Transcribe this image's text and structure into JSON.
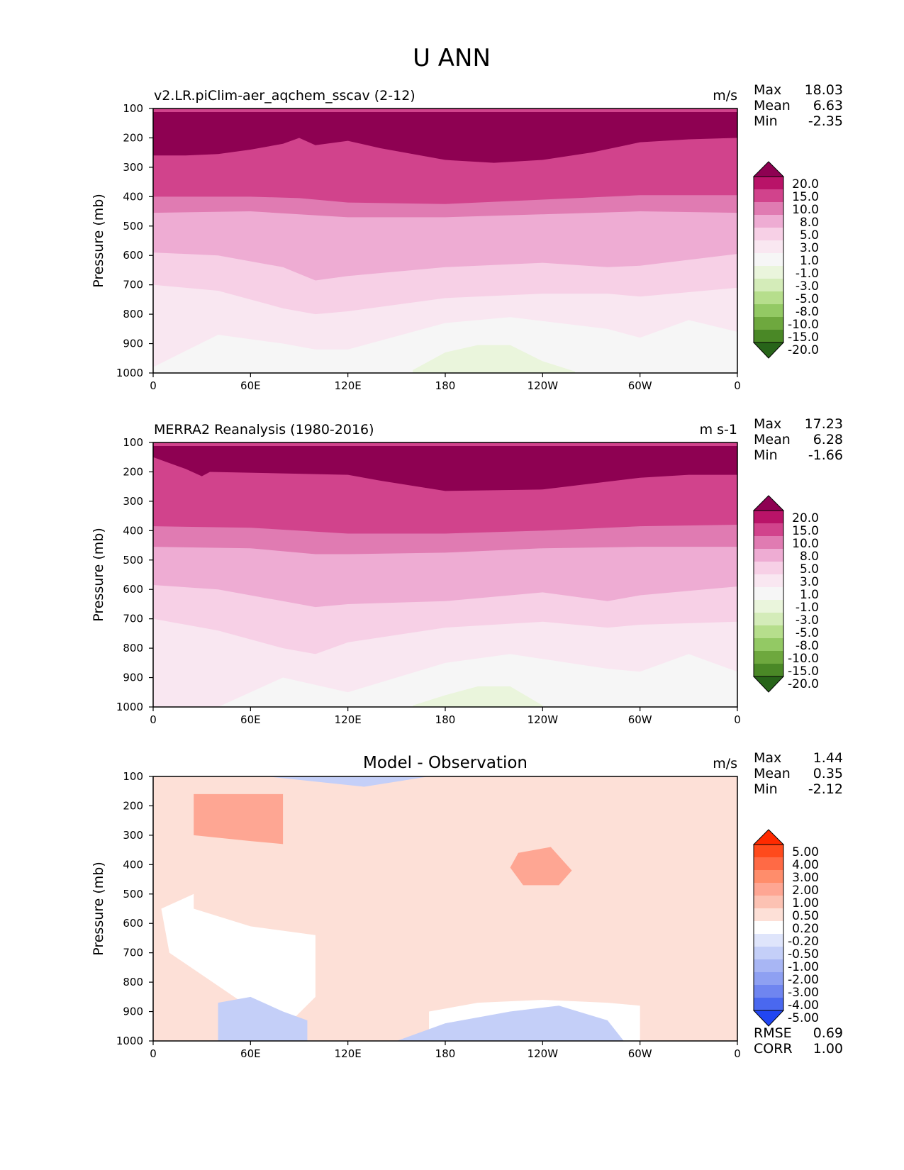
{
  "figure": {
    "title": "U ANN"
  },
  "panels": [
    {
      "title_left": "v2.LR.piClim-aer_aqchem_sscav (2-12)",
      "title_center": "",
      "units": "m/s",
      "stats": [
        {
          "label": "Max",
          "value": "18.03"
        },
        {
          "label": "Mean",
          "value": "6.63"
        },
        {
          "label": "Min",
          "value": "-2.35"
        }
      ],
      "ylabel": "Pressure (mb)",
      "yticks": [
        "100",
        "200",
        "300",
        "400",
        "500",
        "600",
        "700",
        "800",
        "900",
        "1000"
      ],
      "xticks": [
        "0",
        "60E",
        "120E",
        "180",
        "120W",
        "60W",
        "0"
      ],
      "colorbar": {
        "labels": [
          "20.0",
          "15.0",
          "10.0",
          "8.0",
          "5.0",
          "3.0",
          "1.0",
          "-1.0",
          "-3.0",
          "-5.0",
          "-8.0",
          "-10.0",
          "-15.0",
          "-20.0"
        ],
        "colors": [
          "#8e0152",
          "#b91368",
          "#d1438c",
          "#e07bb2",
          "#eeacd3",
          "#f7d0e6",
          "#f9e7f1",
          "#f6f6f6",
          "#eaf5dc",
          "#d4ecb9",
          "#b6de8c",
          "#93c964",
          "#6ea83e",
          "#4a8826",
          "#276419"
        ]
      },
      "extra_stats": []
    },
    {
      "title_left": "MERRA2 Reanalysis (1980-2016)",
      "title_center": "",
      "units": "m s-1",
      "stats": [
        {
          "label": "Max",
          "value": "17.23"
        },
        {
          "label": "Mean",
          "value": "6.28"
        },
        {
          "label": "Min",
          "value": "-1.66"
        }
      ],
      "ylabel": "Pressure (mb)",
      "yticks": [
        "100",
        "200",
        "300",
        "400",
        "500",
        "600",
        "700",
        "800",
        "900",
        "1000"
      ],
      "xticks": [
        "0",
        "60E",
        "120E",
        "180",
        "120W",
        "60W",
        "0"
      ],
      "colorbar": {
        "labels": [
          "20.0",
          "15.0",
          "10.0",
          "8.0",
          "5.0",
          "3.0",
          "1.0",
          "-1.0",
          "-3.0",
          "-5.0",
          "-8.0",
          "-10.0",
          "-15.0",
          "-20.0"
        ],
        "colors": [
          "#8e0152",
          "#b91368",
          "#d1438c",
          "#e07bb2",
          "#eeacd3",
          "#f7d0e6",
          "#f9e7f1",
          "#f6f6f6",
          "#eaf5dc",
          "#d4ecb9",
          "#b6de8c",
          "#93c964",
          "#6ea83e",
          "#4a8826",
          "#276419"
        ]
      },
      "extra_stats": []
    },
    {
      "title_left": "",
      "title_center": "Model - Observation",
      "units": "m/s",
      "stats": [
        {
          "label": "Max",
          "value": "1.44"
        },
        {
          "label": "Mean",
          "value": "0.35"
        },
        {
          "label": "Min",
          "value": "-2.12"
        }
      ],
      "ylabel": "Pressure (mb)",
      "yticks": [
        "100",
        "200",
        "300",
        "400",
        "500",
        "600",
        "700",
        "800",
        "900",
        "1000"
      ],
      "xticks": [
        "0",
        "60E",
        "120E",
        "180",
        "120W",
        "60W",
        "0"
      ],
      "colorbar": {
        "labels": [
          "5.00",
          "4.00",
          "3.00",
          "2.00",
          "1.00",
          "0.50",
          "0.20",
          "-0.20",
          "-0.50",
          "-1.00",
          "-2.00",
          "-3.00",
          "-4.00",
          "-5.00"
        ],
        "colors": [
          "#ff2a00",
          "#ff4a1c",
          "#ff6a45",
          "#ff8d6b",
          "#fea693",
          "#fcc2b3",
          "#fde0d7",
          "#ffffff",
          "#dfe5fb",
          "#c4cff8",
          "#a8b6f4",
          "#8ea0f2",
          "#6f85f0",
          "#4a68ef",
          "#2146f2"
        ]
      },
      "extra_stats": [
        {
          "label": "RMSE",
          "value": "0.69"
        },
        {
          "label": "CORR",
          "value": "1.00"
        }
      ]
    }
  ],
  "chart_data": [
    {
      "type": "heatmap",
      "title": "v2.LR.piClim-aer_aqchem_sscav (2-12)",
      "units": "m/s",
      "xlabel": "",
      "ylabel": "Pressure (mb)",
      "x_ticks": [
        "0",
        "60E",
        "120E",
        "180",
        "120W",
        "60W",
        "0"
      ],
      "ylim": [
        1000,
        100
      ],
      "levels": [
        -20,
        -15,
        -10,
        -8,
        -5,
        -3,
        -1,
        1,
        3,
        5,
        8,
        10,
        15,
        20
      ],
      "contours": [
        {
          "level": 15,
          "lon": [
            0,
            20,
            40,
            60,
            80,
            90,
            100,
            120,
            140,
            180,
            210,
            240,
            270,
            300,
            330,
            360
          ],
          "p": [
            260,
            260,
            255,
            240,
            220,
            200,
            225,
            210,
            235,
            275,
            285,
            275,
            250,
            215,
            205,
            200
          ]
        },
        {
          "level": 10,
          "lon": [
            0,
            60,
            90,
            120,
            180,
            240,
            300,
            360
          ],
          "p": [
            400,
            400,
            405,
            420,
            425,
            410,
            395,
            395
          ]
        },
        {
          "level": 8,
          "lon": [
            0,
            60,
            90,
            120,
            180,
            240,
            300,
            360
          ],
          "p": [
            455,
            450,
            460,
            470,
            470,
            460,
            450,
            455
          ]
        },
        {
          "level": 5,
          "lon": [
            0,
            40,
            80,
            100,
            120,
            180,
            240,
            280,
            300,
            360
          ],
          "p": [
            590,
            600,
            640,
            685,
            670,
            640,
            625,
            640,
            635,
            595
          ]
        },
        {
          "level": 3,
          "lon": [
            0,
            40,
            80,
            100,
            120,
            180,
            240,
            280,
            300,
            360
          ],
          "p": [
            700,
            720,
            780,
            800,
            790,
            745,
            730,
            730,
            740,
            710
          ]
        },
        {
          "level": 1,
          "lon": [
            0,
            40,
            80,
            100,
            120,
            180,
            220,
            280,
            300,
            330,
            360
          ],
          "p": [
            980,
            870,
            900,
            920,
            920,
            830,
            810,
            850,
            880,
            820,
            860
          ]
        },
        {
          "level": -1,
          "lon": [
            160,
            180,
            200,
            220,
            240,
            260
          ],
          "p": [
            990,
            930,
            905,
            905,
            960,
            995
          ]
        }
      ]
    },
    {
      "type": "heatmap",
      "title": "MERRA2 Reanalysis (1980-2016)",
      "units": "m s-1",
      "xlabel": "",
      "ylabel": "Pressure (mb)",
      "x_ticks": [
        "0",
        "60E",
        "120E",
        "180",
        "120W",
        "60W",
        "0"
      ],
      "ylim": [
        1000,
        100
      ],
      "levels": [
        -20,
        -15,
        -10,
        -8,
        -5,
        -3,
        -1,
        1,
        3,
        5,
        8,
        10,
        15,
        20
      ],
      "contours": [
        {
          "level": 15,
          "lon": [
            0,
            20,
            30,
            35,
            120,
            140,
            180,
            240,
            270,
            300,
            330,
            360
          ],
          "p": [
            150,
            190,
            215,
            200,
            210,
            230,
            265,
            260,
            240,
            220,
            210,
            210
          ]
        },
        {
          "level": 10,
          "lon": [
            0,
            60,
            120,
            180,
            240,
            300,
            360
          ],
          "p": [
            385,
            390,
            410,
            410,
            400,
            385,
            380
          ]
        },
        {
          "level": 8,
          "lon": [
            0,
            60,
            100,
            120,
            180,
            240,
            300,
            360
          ],
          "p": [
            455,
            460,
            480,
            480,
            475,
            460,
            455,
            455
          ]
        },
        {
          "level": 5,
          "lon": [
            0,
            40,
            80,
            100,
            120,
            180,
            240,
            280,
            300,
            360
          ],
          "p": [
            585,
            600,
            640,
            660,
            650,
            640,
            610,
            640,
            620,
            590
          ]
        },
        {
          "level": 3,
          "lon": [
            0,
            40,
            80,
            100,
            120,
            180,
            240,
            280,
            300,
            360
          ],
          "p": [
            700,
            740,
            800,
            820,
            780,
            730,
            710,
            730,
            720,
            710
          ]
        },
        {
          "level": 1,
          "lon": [
            0,
            40,
            80,
            120,
            180,
            220,
            280,
            300,
            330,
            360
          ],
          "p": [
            1000,
            1000,
            900,
            950,
            850,
            820,
            870,
            880,
            820,
            880
          ]
        },
        {
          "level": -1,
          "lon": [
            160,
            180,
            200,
            220,
            240
          ],
          "p": [
            995,
            960,
            930,
            930,
            995
          ]
        }
      ]
    },
    {
      "type": "heatmap",
      "title": "Model - Observation",
      "units": "m/s",
      "xlabel": "",
      "ylabel": "Pressure (mb)",
      "x_ticks": [
        "0",
        "60E",
        "120E",
        "180",
        "120W",
        "60W",
        "0"
      ],
      "ylim": [
        1000,
        100
      ],
      "levels": [
        -5,
        -4,
        -3,
        -2,
        -1,
        -0.5,
        -0.2,
        0.2,
        0.5,
        1,
        2,
        3,
        4,
        5
      ],
      "regions": [
        {
          "range": [
            1,
            2
          ],
          "lon": [
            25,
            40,
            80,
            80,
            60,
            25
          ],
          "p": [
            160,
            160,
            160,
            330,
            320,
            300
          ]
        },
        {
          "range": [
            1,
            2
          ],
          "lon": [
            225,
            245,
            258,
            250,
            228,
            220
          ],
          "p": [
            360,
            340,
            420,
            470,
            470,
            410
          ]
        },
        {
          "range": [
            -0.2,
            0.2
          ],
          "lon": [
            5,
            25,
            25,
            60,
            100,
            100,
            80,
            50,
            10
          ],
          "p": [
            550,
            500,
            550,
            610,
            640,
            850,
            960,
            850,
            700
          ]
        },
        {
          "range": [
            -0.2,
            0.2
          ],
          "lon": [
            170,
            200,
            240,
            280,
            300,
            300,
            240,
            200,
            170
          ],
          "p": [
            900,
            870,
            860,
            870,
            880,
            1000,
            1000,
            1000,
            1000
          ]
        },
        {
          "range": [
            -1,
            -0.2
          ],
          "lon": [
            70,
            95,
            130,
            150,
            170,
            130
          ],
          "p": [
            100,
            100,
            100,
            100,
            100,
            135
          ]
        },
        {
          "range": [
            -1,
            -0.2
          ],
          "lon": [
            40,
            60,
            80,
            95,
            95,
            40
          ],
          "p": [
            870,
            850,
            900,
            930,
            1000,
            1000
          ]
        },
        {
          "range": [
            -1,
            -0.2
          ],
          "lon": [
            150,
            180,
            220,
            250,
            280,
            290,
            150
          ],
          "p": [
            1000,
            940,
            900,
            880,
            930,
            1000,
            1000
          ]
        }
      ]
    }
  ]
}
